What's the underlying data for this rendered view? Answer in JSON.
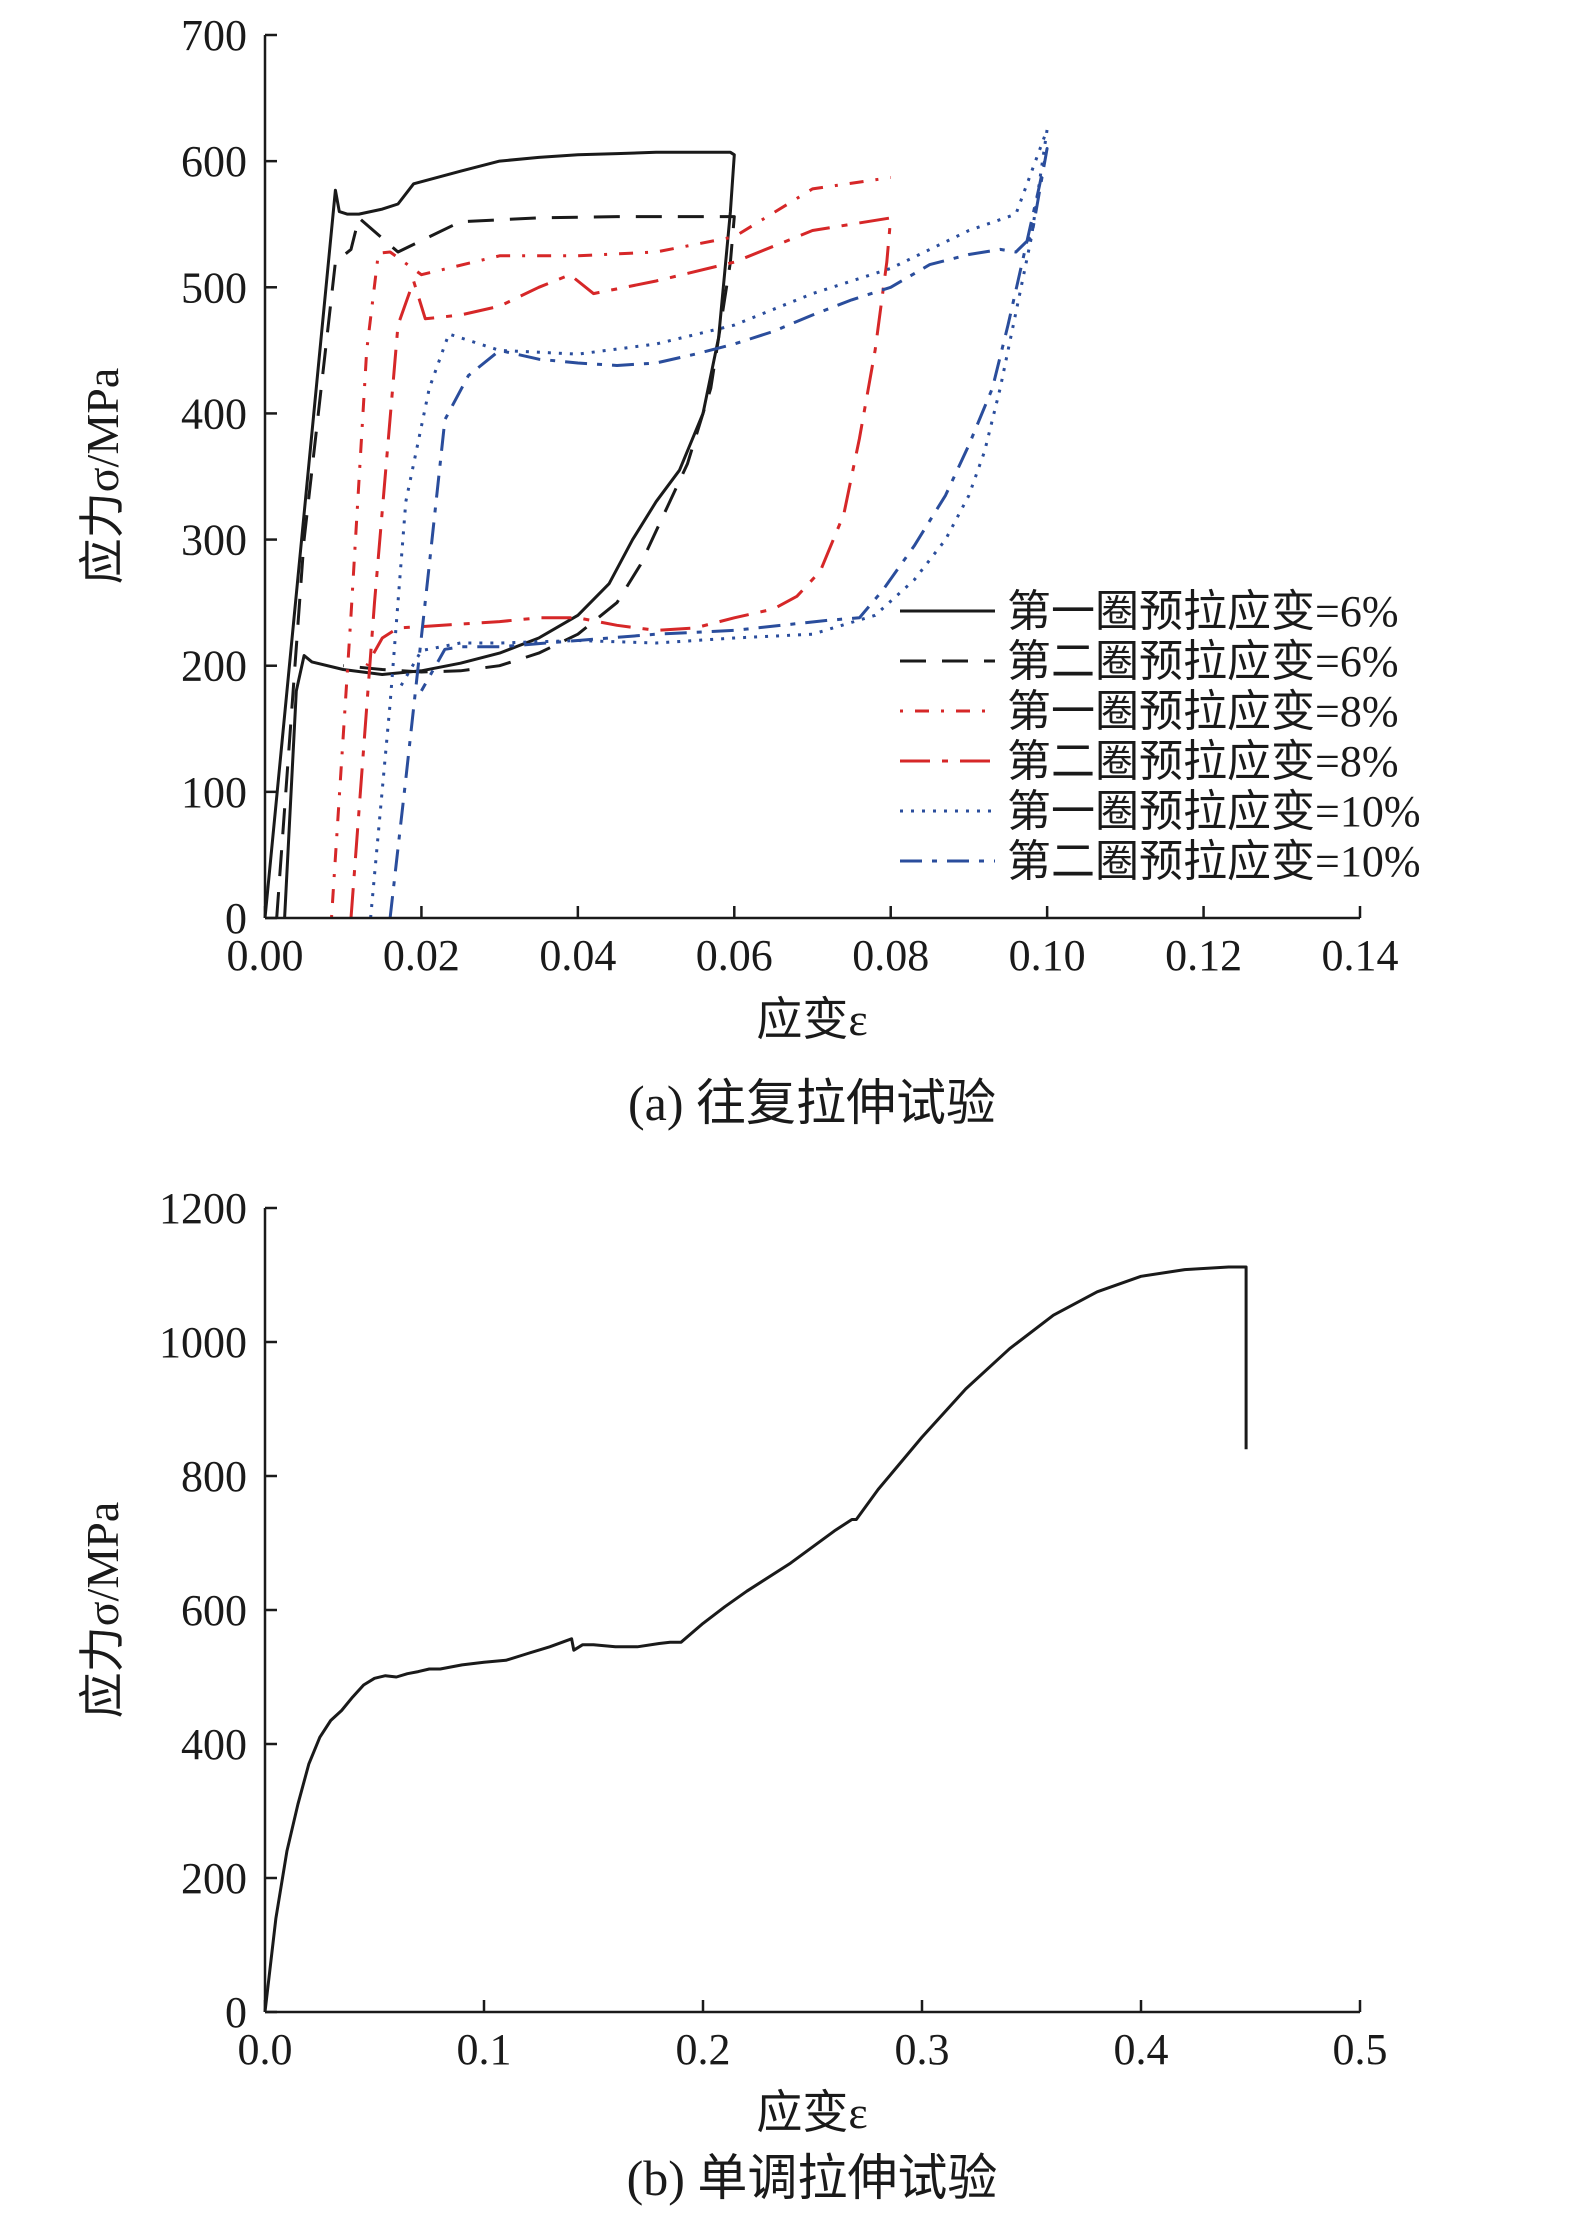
{
  "chart_data": [
    {
      "type": "line",
      "caption": "(a) 往复拉伸试验",
      "xlabel": "应变ε",
      "ylabel": "应力σ/MPa",
      "xlim": [
        0,
        0.14
      ],
      "ylim": [
        0,
        700
      ],
      "xticks": [
        "0.00",
        "0.02",
        "0.04",
        "0.06",
        "0.08",
        "0.10",
        "0.12",
        "0.14"
      ],
      "yticks": [
        "0",
        "100",
        "200",
        "300",
        "400",
        "500",
        "600",
        "700"
      ],
      "legend_position": "right",
      "series": [
        {
          "name": "第一圈预拉应变=6%",
          "color": "#1a1a1a",
          "dash": "solid",
          "x": [
            0.0,
            0.009,
            0.0095,
            0.0105,
            0.012,
            0.015,
            0.017,
            0.019,
            0.025,
            0.03,
            0.035,
            0.04,
            0.045,
            0.05,
            0.055,
            0.058,
            0.0595,
            0.06,
            0.0595,
            0.058,
            0.056,
            0.053,
            0.05,
            0.047,
            0.044,
            0.04,
            0.035,
            0.03,
            0.025,
            0.02,
            0.015,
            0.01,
            0.006,
            0.005,
            0.004,
            0.0025
          ],
          "y": [
            0,
            577,
            560,
            558,
            558,
            562,
            566,
            582,
            592,
            600,
            603,
            605,
            606,
            607,
            607,
            607,
            607,
            605,
            560,
            460,
            400,
            355,
            330,
            300,
            265,
            240,
            222,
            210,
            202,
            196,
            193,
            197,
            203,
            208,
            180,
            0
          ]
        },
        {
          "name": "第二圈预拉应变=6%",
          "color": "#1a1a1a",
          "dash": "26,16",
          "x": [
            0.0015,
            0.005,
            0.009,
            0.011,
            0.012,
            0.017,
            0.025,
            0.035,
            0.045,
            0.055,
            0.06,
            0.0595,
            0.057,
            0.054,
            0.051,
            0.048,
            0.045,
            0.04,
            0.035,
            0.03,
            0.025,
            0.02,
            0.015,
            0.01
          ],
          "y": [
            0,
            300,
            520,
            530,
            555,
            528,
            552,
            555,
            556,
            556,
            556,
            520,
            420,
            360,
            320,
            280,
            250,
            225,
            210,
            200,
            196,
            195,
            197,
            200
          ]
        },
        {
          "name": "第一圈预拉应变=8%",
          "color": "#d62728",
          "dash": "3,12,14,12",
          "x": [
            0.0085,
            0.011,
            0.013,
            0.0145,
            0.016,
            0.02,
            0.03,
            0.04,
            0.05,
            0.06,
            0.07,
            0.08
          ],
          "y": [
            0,
            240,
            450,
            527,
            528,
            510,
            525,
            525,
            528,
            540,
            578,
            587
          ]
        },
        {
          "name": "第二圈预拉应变=8%",
          "color": "#d62728",
          "dash": "30,12,6,12",
          "x": [
            0.011,
            0.014,
            0.017,
            0.019,
            0.0205,
            0.025,
            0.03,
            0.035,
            0.039,
            0.042,
            0.05,
            0.06,
            0.07,
            0.08,
            0.0795,
            0.078,
            0.076,
            0.074,
            0.071,
            0.068,
            0.065,
            0.06,
            0.055,
            0.05,
            0.045,
            0.04,
            0.035,
            0.03,
            0.025,
            0.02,
            0.017,
            0.015,
            0.013
          ],
          "y": [
            0,
            250,
            470,
            505,
            475,
            478,
            485,
            500,
            510,
            495,
            505,
            520,
            545,
            555,
            520,
            450,
            380,
            320,
            275,
            255,
            245,
            238,
            230,
            228,
            232,
            238,
            238,
            235,
            233,
            231,
            230,
            222,
            200
          ]
        },
        {
          "name": "第一圈预拉应变=10%",
          "color": "#2a4d9c",
          "dash": "3,8",
          "x": [
            0.0135,
            0.016,
            0.018,
            0.021,
            0.0235,
            0.03,
            0.04,
            0.05,
            0.06,
            0.07,
            0.08,
            0.09,
            0.096,
            0.1,
            0.098,
            0.096,
            0.094,
            0.092,
            0.09,
            0.087,
            0.083,
            0.078,
            0.07,
            0.06,
            0.05,
            0.04,
            0.03,
            0.025,
            0.02,
            0.017
          ],
          "y": [
            0,
            170,
            330,
            420,
            463,
            450,
            447,
            455,
            470,
            495,
            515,
            545,
            558,
            625,
            540,
            480,
            420,
            370,
            335,
            300,
            268,
            240,
            225,
            222,
            218,
            220,
            218,
            218,
            212,
            180
          ]
        },
        {
          "name": "第二圈预拉应变=10%",
          "color": "#2a4d9c",
          "dash": "22,10,5,10",
          "x": [
            0.016,
            0.018,
            0.021,
            0.023,
            0.026,
            0.03,
            0.035,
            0.04,
            0.045,
            0.05,
            0.055,
            0.06,
            0.065,
            0.07,
            0.075,
            0.08,
            0.085,
            0.09,
            0.094,
            0.096,
            0.098,
            0.1,
            0.099,
            0.097,
            0.095,
            0.093,
            0.09,
            0.087,
            0.083,
            0.079,
            0.076,
            0.072,
            0.066,
            0.06,
            0.05,
            0.04,
            0.03,
            0.025,
            0.023,
            0.02
          ],
          "y": [
            0,
            110,
            280,
            395,
            430,
            450,
            443,
            440,
            438,
            440,
            447,
            455,
            465,
            478,
            490,
            500,
            518,
            526,
            530,
            528,
            540,
            610,
            580,
            525,
            470,
            420,
            375,
            335,
            295,
            260,
            238,
            236,
            232,
            228,
            225,
            220,
            215,
            215,
            213,
            180
          ]
        }
      ]
    },
    {
      "type": "line",
      "caption": "(b) 单调拉伸试验",
      "xlabel": "应变ε",
      "ylabel": "应力σ/MPa",
      "xlim": [
        0,
        0.5
      ],
      "ylim": [
        0,
        1200
      ],
      "xticks": [
        "0.0",
        "0.1",
        "0.2",
        "0.3",
        "0.4",
        "0.5"
      ],
      "yticks": [
        "0",
        "200",
        "400",
        "600",
        "800",
        "1000",
        "1200"
      ],
      "series": [
        {
          "color": "#1a1a1a",
          "dash": "solid",
          "x": [
            0.0,
            0.005,
            0.01,
            0.015,
            0.02,
            0.025,
            0.03,
            0.035,
            0.04,
            0.045,
            0.05,
            0.055,
            0.06,
            0.065,
            0.07,
            0.075,
            0.08,
            0.09,
            0.1,
            0.11,
            0.12,
            0.13,
            0.14,
            0.141,
            0.145,
            0.15,
            0.16,
            0.17,
            0.18,
            0.185,
            0.19,
            0.2,
            0.21,
            0.22,
            0.24,
            0.26,
            0.268,
            0.27,
            0.28,
            0.3,
            0.32,
            0.34,
            0.36,
            0.38,
            0.4,
            0.42,
            0.44,
            0.448,
            0.448
          ],
          "y": [
            0,
            140,
            240,
            310,
            370,
            410,
            435,
            450,
            470,
            488,
            498,
            502,
            500,
            505,
            508,
            512,
            512,
            518,
            522,
            525,
            535,
            545,
            557,
            540,
            548,
            548,
            545,
            545,
            550,
            552,
            552,
            580,
            605,
            628,
            670,
            718,
            735,
            735,
            780,
            858,
            930,
            990,
            1040,
            1075,
            1098,
            1108,
            1112,
            1112,
            840
          ]
        }
      ]
    }
  ]
}
